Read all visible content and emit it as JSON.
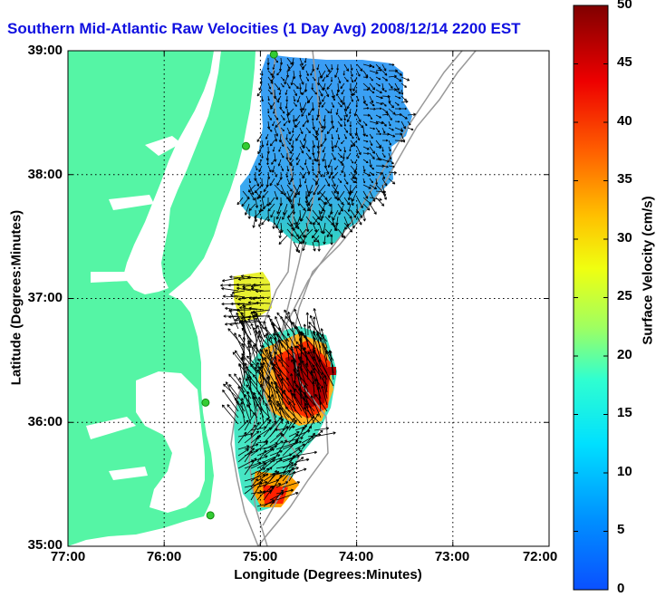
{
  "title": "Southern Mid-Atlantic Raw Velocities (1 Day Avg) 2008/12/14 2200 EST",
  "axes": {
    "xlabel": "Longitude (Degrees:Minutes)",
    "ylabel": "Latitude (Degrees:Minutes)",
    "xticks": [
      "77:00",
      "76:00",
      "75:00",
      "74:00",
      "73:00",
      "72:00"
    ],
    "yticks": [
      "39:00",
      "38:00",
      "37:00",
      "36:00",
      "35:00"
    ]
  },
  "colorbar": {
    "label": "Surface Velocity (cm/s)",
    "ticks": [
      "50",
      "45",
      "40",
      "35",
      "30",
      "25",
      "20",
      "15",
      "10",
      "5",
      "0"
    ]
  },
  "colors": {
    "land": "#55f5a5",
    "title": "#1010e0",
    "contour": "#999999",
    "station": "#33cc33"
  },
  "chart_data": {
    "type": "map",
    "xlim": [
      -77,
      -72
    ],
    "ylim": [
      35,
      39
    ],
    "clim": [
      0,
      50
    ],
    "grid": true,
    "colormap": "jet",
    "north_region": {
      "lat_range": [
        37.55,
        39.0
      ],
      "lon_range": [
        -75.2,
        -73.6
      ],
      "speed_cm_s": [
        5,
        15
      ]
    },
    "south_region": {
      "lat_range": [
        35.2,
        36.9
      ],
      "lon_range": [
        -75.3,
        -74.2
      ],
      "speed_cm_s": [
        15,
        50
      ]
    },
    "stations": [
      [
        -74.86,
        38.97
      ],
      [
        -75.15,
        38.23
      ],
      [
        -75.57,
        36.16
      ],
      [
        -75.52,
        35.25
      ]
    ]
  }
}
